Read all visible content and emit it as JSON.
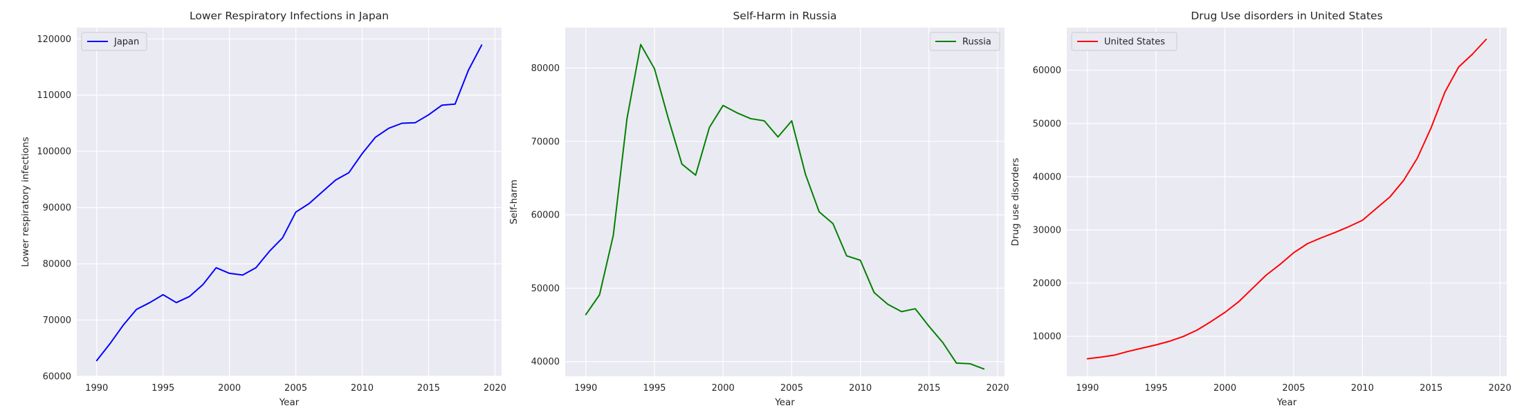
{
  "chart_data": [
    {
      "type": "line",
      "title": "Lower Respiratory Infections in Japan",
      "xlabel": "Year",
      "ylabel": "Lower respiratory infections",
      "xlim": [
        1988.5,
        2020.5
      ],
      "ylim": [
        60000,
        122000
      ],
      "xticks": [
        1990,
        1995,
        2000,
        2005,
        2010,
        2015,
        2020
      ],
      "yticks": [
        60000,
        70000,
        80000,
        90000,
        100000,
        110000,
        120000
      ],
      "grid": true,
      "legend_position": "upper-left",
      "series": [
        {
          "name": "Japan",
          "color": "#0000ff",
          "x": [
            1990,
            1991,
            1992,
            1993,
            1994,
            1995,
            1996,
            1997,
            1998,
            1999,
            2000,
            2001,
            2002,
            2003,
            2004,
            2005,
            2006,
            2007,
            2008,
            2009,
            2010,
            2011,
            2012,
            2013,
            2014,
            2015,
            2016,
            2017,
            2018,
            2019
          ],
          "y": [
            62800,
            65800,
            69100,
            71900,
            73100,
            74500,
            73100,
            74200,
            76300,
            79300,
            78300,
            78000,
            79300,
            82200,
            84600,
            89200,
            90700,
            92800,
            94900,
            96200,
            99600,
            102500,
            104100,
            105000,
            105100,
            106500,
            108200,
            108400,
            114400,
            118900
          ]
        }
      ]
    },
    {
      "type": "line",
      "title": "Self-Harm in Russia",
      "xlabel": "Year",
      "ylabel": "Self-harm",
      "xlim": [
        1988.5,
        2020.5
      ],
      "ylim": [
        38000,
        85500
      ],
      "xticks": [
        1990,
        1995,
        2000,
        2005,
        2010,
        2015,
        2020
      ],
      "yticks": [
        40000,
        50000,
        60000,
        70000,
        80000
      ],
      "grid": true,
      "legend_position": "upper-right",
      "series": [
        {
          "name": "Russia",
          "color": "#008000",
          "x": [
            1990,
            1991,
            1992,
            1993,
            1994,
            1995,
            1996,
            1997,
            1998,
            1999,
            2000,
            2001,
            2002,
            2003,
            2004,
            2005,
            2006,
            2007,
            2008,
            2009,
            2010,
            2011,
            2012,
            2013,
            2014,
            2015,
            2016,
            2017,
            2018,
            2019
          ],
          "y": [
            46400,
            49100,
            57200,
            73100,
            83200,
            79900,
            73200,
            66900,
            65400,
            71900,
            74900,
            73900,
            73100,
            72800,
            70600,
            72800,
            65500,
            60400,
            58800,
            54400,
            53800,
            49400,
            47800,
            46800,
            47200,
            44800,
            42600,
            39800,
            39700,
            39000
          ]
        }
      ]
    },
    {
      "type": "line",
      "title": "Drug Use disorders in United States",
      "xlabel": "Year",
      "ylabel": "Drug use disorders",
      "xlim": [
        1988.5,
        2020.5
      ],
      "ylim": [
        2500,
        68000
      ],
      "xticks": [
        1990,
        1995,
        2000,
        2005,
        2010,
        2015,
        2020
      ],
      "yticks": [
        10000,
        20000,
        30000,
        40000,
        50000,
        60000
      ],
      "grid": true,
      "legend_position": "upper-left",
      "series": [
        {
          "name": "United States",
          "color": "#ff0000",
          "x": [
            1990,
            1991,
            1992,
            1993,
            1994,
            1995,
            1996,
            1997,
            1998,
            1999,
            2000,
            2001,
            2002,
            2003,
            2004,
            2005,
            2006,
            2007,
            2008,
            2009,
            2010,
            2011,
            2012,
            2013,
            2014,
            2015,
            2016,
            2017,
            2018,
            2019
          ],
          "y": [
            5800,
            6100,
            6500,
            7200,
            7800,
            8400,
            9100,
            10000,
            11200,
            12800,
            14500,
            16500,
            19000,
            21500,
            23500,
            25700,
            27400,
            28500,
            29500,
            30600,
            31800,
            34000,
            36200,
            39300,
            43500,
            49200,
            55900,
            60600,
            63000,
            65800
          ]
        }
      ]
    }
  ]
}
